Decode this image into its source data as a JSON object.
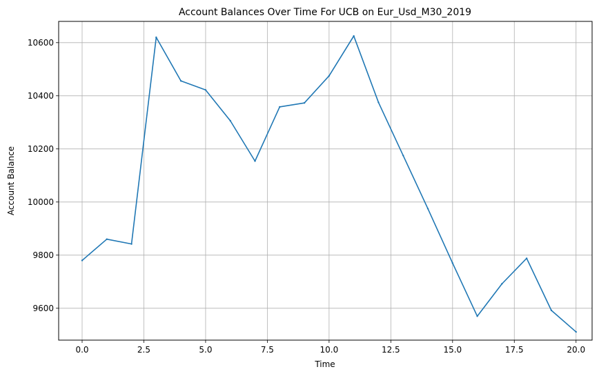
{
  "chart_data": {
    "type": "line",
    "title": "Account Balances Over Time For UCB on Eur_Usd_M30_2019",
    "xlabel": "Time",
    "ylabel": "Account Balance",
    "xlim": [
      -0.95,
      20.65
    ],
    "ylim": [
      9480,
      10680
    ],
    "xticks": [
      0.0,
      2.5,
      5.0,
      7.5,
      10.0,
      12.5,
      15.0,
      17.5,
      20.0
    ],
    "xtick_labels": [
      "0.0",
      "2.5",
      "5.0",
      "7.5",
      "10.0",
      "12.5",
      "15.0",
      "17.5",
      "20.0"
    ],
    "yticks": [
      9600,
      9800,
      10000,
      10200,
      10400,
      10600
    ],
    "ytick_labels": [
      "9600",
      "9800",
      "10000",
      "10200",
      "10400",
      "10600"
    ],
    "grid": true,
    "series": [
      {
        "color": "#1f77b4",
        "x": [
          0,
          1,
          2,
          3,
          4,
          5,
          6,
          7,
          8,
          9,
          10,
          11,
          12,
          13,
          14,
          15,
          16,
          17,
          18,
          19,
          20
        ],
        "y": [
          9780,
          9860,
          9842,
          10620,
          10456,
          10422,
          10306,
          10154,
          10358,
          10373,
          10475,
          10625,
          10375,
          10175,
          9975,
          9770,
          9570,
          9692,
          9788,
          9592,
          9511
        ]
      }
    ]
  }
}
